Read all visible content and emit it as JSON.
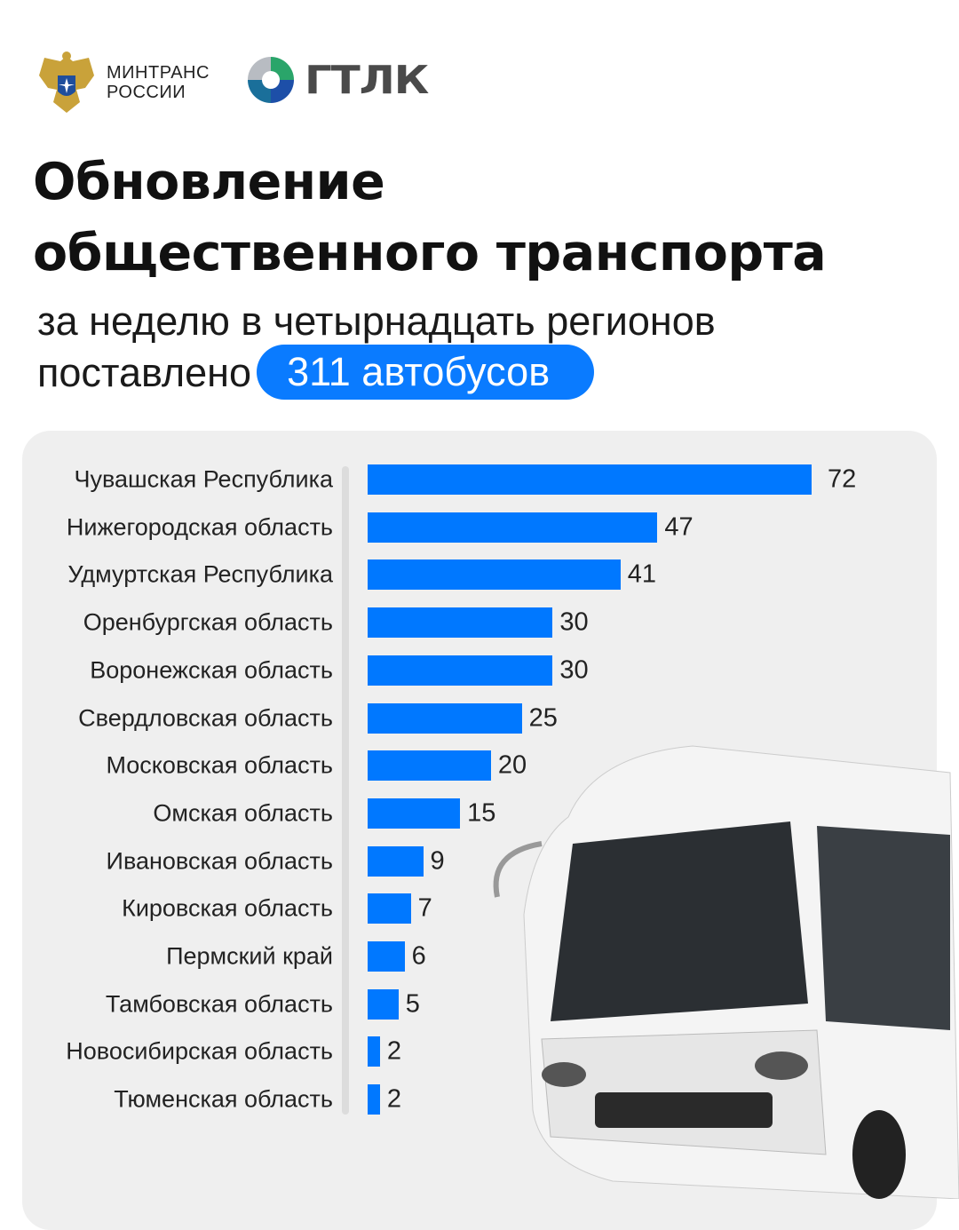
{
  "header": {
    "logo_mintrans": [
      "МИНТРАНС",
      "РОССИИ"
    ],
    "logo_gtlk": "ГТЛК"
  },
  "title": [
    "Обновление",
    "общественного транспорта"
  ],
  "subtitle": {
    "line1": "за неделю в четырнадцать регионов",
    "line2_prefix": "поставлено",
    "highlight": "311 автобусов"
  },
  "colors": {
    "bar": "#0078FF",
    "accent": "#0A7BFF",
    "panel": "#EFEFEF"
  },
  "chart_data": {
    "type": "bar",
    "orientation": "horizontal",
    "categories": [
      "Чувашская Республика",
      "Нижегородская область",
      "Удмуртская Республика",
      "Оренбургская область",
      "Воронежская область",
      "Свердловская область",
      "Московская область",
      "Омская область",
      "Ивановская область",
      "Кировская область",
      "Пермский край",
      "Тамбовская область",
      "Новосибирская область",
      "Тюменская область"
    ],
    "values": [
      72,
      47,
      41,
      30,
      30,
      25,
      20,
      15,
      9,
      7,
      6,
      5,
      2,
      2
    ],
    "data_labels": true,
    "grid": false
  }
}
